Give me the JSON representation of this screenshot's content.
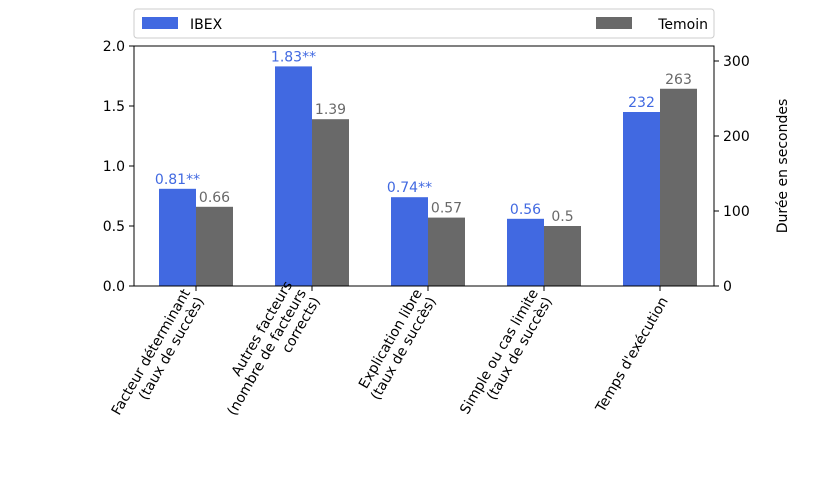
{
  "chart_data": {
    "type": "bar",
    "categories": [
      [
        "Facteur déterminant",
        "(taux de succès)"
      ],
      [
        "Autres facteurs",
        "(nombre de facteurs",
        "corrects)"
      ],
      [
        "Explication libre",
        "(taux de succès)"
      ],
      [
        "Simple ou cas limite",
        "(taux de succès)"
      ],
      [
        "Temps d'exécution"
      ]
    ],
    "series": [
      {
        "name": "IBEX",
        "color": "#4169e1",
        "values": [
          0.81,
          1.83,
          0.74,
          0.56,
          232
        ],
        "value_labels": [
          "0.81**",
          "1.83**",
          "0.74**",
          "0.56",
          "232"
        ],
        "value_axes": [
          "y",
          "y",
          "y",
          "y",
          "y2"
        ]
      },
      {
        "name": "Temoin",
        "color": "#696969",
        "values": [
          0.66,
          1.39,
          0.57,
          0.5,
          263
        ],
        "value_axes": [
          "y",
          "y",
          "y",
          "y",
          "y2"
        ]
      }
    ],
    "ylim": [
      0,
      2
    ],
    "yticks": [
      {
        "value": 0,
        "label": "0.0"
      },
      0.5,
      {
        "value": 1,
        "label": "1.0"
      },
      1.5,
      {
        "value": 2,
        "label": "2.0"
      }
    ],
    "y2lim": [
      0,
      320
    ],
    "y2ticks": [
      0,
      100,
      200,
      300
    ],
    "y2label": "Durée en secondes",
    "legend": "top"
  }
}
